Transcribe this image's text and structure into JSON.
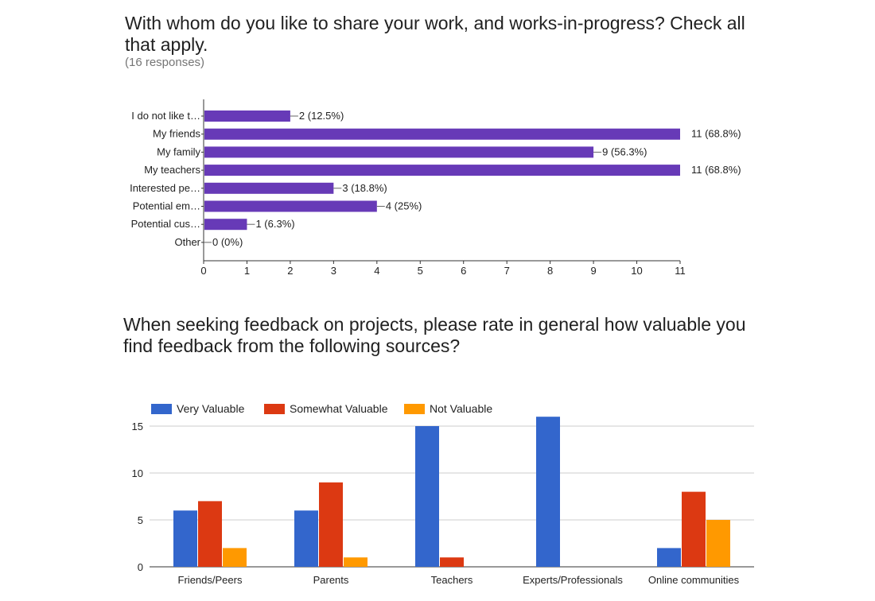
{
  "chart_data": [
    {
      "type": "bar",
      "orientation": "horizontal",
      "title": "With whom do you like to share your work, and works-in-progress? Check all that apply.",
      "subtitle": "(16 responses)",
      "categories": [
        "I do not like t…",
        "My friends",
        "My family",
        "My teachers",
        "Interested pe…",
        "Potential em…",
        "Potential cus…",
        "Other"
      ],
      "values": [
        2,
        11,
        9,
        11,
        3,
        4,
        1,
        0
      ],
      "value_labels": [
        "2 (12.5%)",
        "11 (68.8%)",
        "9 (56.3%)",
        "11 (68.8%)",
        "3 (18.8%)",
        "4 (25%)",
        "1 (6.3%)",
        "0 (0%)"
      ],
      "xlim": [
        0,
        11
      ],
      "xticks": [
        "0",
        "1",
        "2",
        "3",
        "4",
        "5",
        "6",
        "7",
        "8",
        "9",
        "10",
        "11"
      ],
      "grid": false,
      "bar_color": "#673ab7"
    },
    {
      "type": "bar",
      "title": "When seeking feedback on projects, please rate in general how valuable you find feedback from the following sources?",
      "categories": [
        "Friends/Peers",
        "Parents",
        "Teachers",
        "Experts/Professionals",
        "Online communities"
      ],
      "series": [
        {
          "name": "Very Valuable",
          "color": "#3366cc",
          "values": [
            6,
            6,
            15,
            16,
            2
          ]
        },
        {
          "name": "Somewhat Valuable",
          "color": "#dc3912",
          "values": [
            7,
            9,
            1,
            0,
            8
          ]
        },
        {
          "name": "Not Valuable",
          "color": "#ff9900",
          "values": [
            2,
            1,
            0,
            0,
            5
          ]
        }
      ],
      "ylim": [
        0,
        15
      ],
      "yticks": [
        "0",
        "5",
        "10",
        "15"
      ],
      "grid": true,
      "legend_position": "top-left"
    }
  ]
}
